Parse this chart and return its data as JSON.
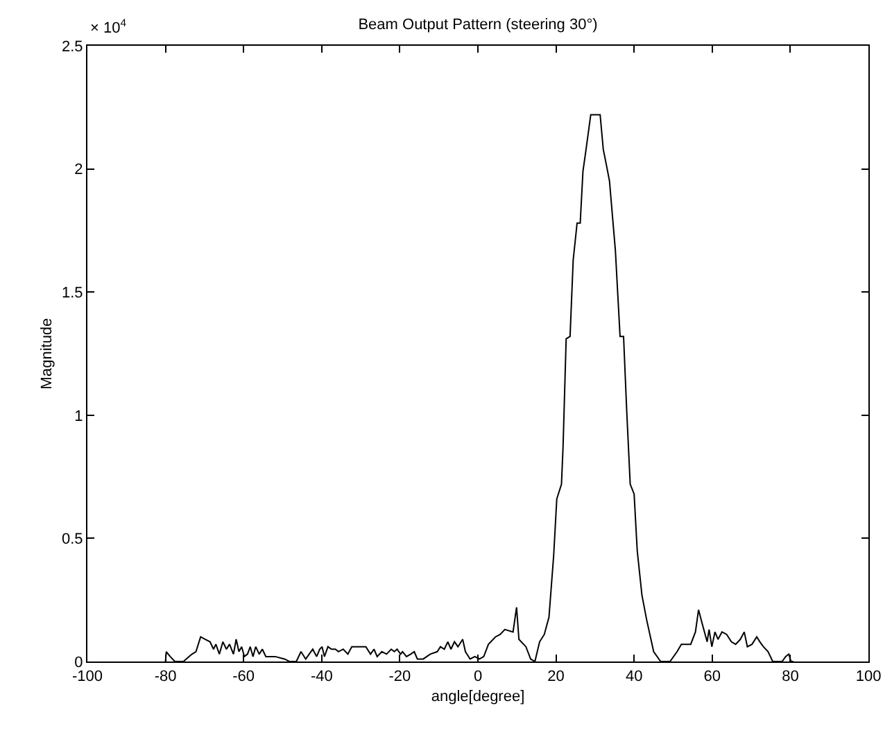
{
  "chart_data": {
    "type": "line",
    "title": "Beam Output Pattern (steering 30°)",
    "xlabel": "angle[degree]",
    "ylabel": "Magnitude",
    "annotations": [
      "× 10$^{4}$"
    ],
    "x": [
      -80,
      -79.8,
      -78.8,
      -77.6,
      -75.4,
      -74,
      -73.2,
      -72.2,
      -71,
      -69.8,
      -68.6,
      -67.7,
      -67.1,
      -66.2,
      -65.3,
      -64.4,
      -63.6,
      -62.6,
      -61.9,
      -61.2,
      -60.5,
      -59.8,
      -59,
      -58.3,
      -57.6,
      -56.9,
      -56,
      -55.2,
      -54.3,
      -51.9,
      -49.5,
      -48.3,
      -46.5,
      -45.3,
      -44.1,
      -43.2,
      -42.3,
      -41.3,
      -40.5,
      -39.9,
      -39.3,
      -38.4,
      -37.5,
      -36.5,
      -35.7,
      -34.5,
      -33.3,
      -32.3,
      -31.1,
      -29.9,
      -28.7,
      -27.5,
      -26.6,
      -25.8,
      -24.6,
      -23.4,
      -22.2,
      -21.4,
      -20.7,
      -19.8,
      -19.3,
      -18.3,
      -17.2,
      -16.3,
      -15.5,
      -14,
      -12.2,
      -10.4,
      -9.6,
      -8.6,
      -7.7,
      -6.9,
      -6,
      -5.1,
      -3.9,
      -3.2,
      -2,
      -0.8,
      0.4,
      1.5,
      2.7,
      4.5,
      5.7,
      6.9,
      9,
      9.9,
      10.5,
      12.3,
      13.5,
      14.6,
      15.8,
      17,
      18.2,
      19.4,
      20.2,
      21.4,
      21.8,
      22.6,
      23.6,
      24.4,
      25.4,
      26.2,
      26.9,
      27.7,
      28.9,
      31.3,
      32.1,
      33.1,
      33.7,
      34.5,
      35.2,
      36.4,
      37.3,
      38.1,
      39,
      40,
      40.8,
      42,
      43.2,
      45,
      46.8,
      49.2,
      51,
      52.1,
      54.5,
      55.7,
      56.5,
      57.5,
      58.7,
      59.2,
      59.9,
      60.7,
      61.5,
      62.5,
      63.7,
      64.9,
      66,
      67.2,
      68.2,
      69,
      70.2,
      71.4,
      72.2,
      73.1,
      74.3,
      75.5,
      76.7,
      77.9,
      78.8,
      79.6,
      80.2,
      80.8
    ],
    "series": [
      {
        "color": "#000000",
        "values": [
          0,
          0.04,
          0.02,
          0,
          0,
          0.02,
          0.03,
          0.04,
          0.1,
          0.09,
          0.08,
          0.05,
          0.07,
          0.03,
          0.08,
          0.05,
          0.07,
          0.03,
          0.09,
          0.04,
          0.06,
          0.02,
          0.03,
          0.06,
          0.02,
          0.06,
          0.03,
          0.05,
          0.02,
          0.02,
          0.01,
          0,
          0,
          0.04,
          0.01,
          0.03,
          0.05,
          0.02,
          0.05,
          0.06,
          0.02,
          0.06,
          0.05,
          0.05,
          0.04,
          0.05,
          0.03,
          0.06,
          0.06,
          0.06,
          0.06,
          0.03,
          0.05,
          0.02,
          0.04,
          0.03,
          0.05,
          0.04,
          0.05,
          0.03,
          0.04,
          0.02,
          0.03,
          0.04,
          0.01,
          0.01,
          0.03,
          0.04,
          0.06,
          0.05,
          0.08,
          0.05,
          0.08,
          0.06,
          0.09,
          0.04,
          0.01,
          0.02,
          0.01,
          0.02,
          0.07,
          0.1,
          0.11,
          0.13,
          0.12,
          0.22,
          0.09,
          0.06,
          0.01,
          0,
          0.08,
          0.11,
          0.18,
          0.43,
          0.66,
          0.72,
          0.87,
          1.31,
          1.32,
          1.63,
          1.78,
          1.78,
          1.99,
          2.08,
          2.22,
          2.22,
          2.08,
          2.0,
          1.95,
          1.8,
          1.67,
          1.32,
          1.32,
          1.02,
          0.72,
          0.68,
          0.45,
          0.27,
          0.17,
          0.04,
          0,
          0,
          0.04,
          0.07,
          0.07,
          0.12,
          0.21,
          0.15,
          0.08,
          0.13,
          0.06,
          0.12,
          0.09,
          0.12,
          0.11,
          0.08,
          0.07,
          0.09,
          0.12,
          0.06,
          0.07,
          0.1,
          0.08,
          0.06,
          0.04,
          0,
          0,
          0,
          0.02,
          0.03,
          0,
          0
        ]
      }
    ],
    "xlim": [
      -100,
      100
    ],
    "xticks": [
      -100,
      -80,
      -60,
      -40,
      -20,
      0,
      20,
      40,
      60,
      80,
      100
    ],
    "ylim": [
      0,
      2.5
    ],
    "yticks": [
      0,
      0.5,
      1,
      1.5,
      2,
      2.5
    ]
  }
}
